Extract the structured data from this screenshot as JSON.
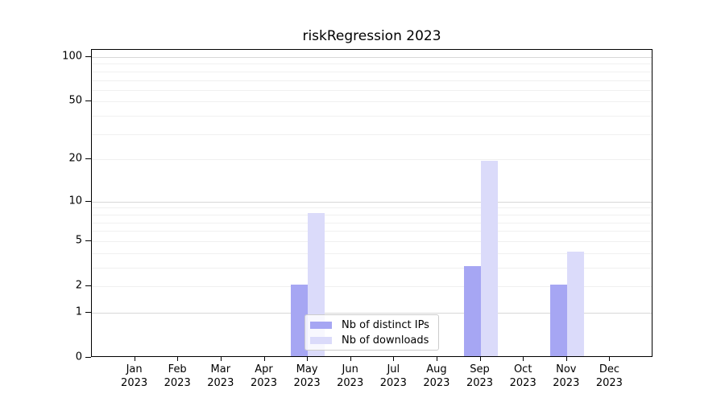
{
  "chart_data": {
    "type": "bar",
    "title": "riskRegression 2023",
    "categories": [
      "Jan 2023",
      "Feb 2023",
      "Mar 2023",
      "Apr 2023",
      "May 2023",
      "Jun 2023",
      "Jul 2023",
      "Aug 2023",
      "Sep 2023",
      "Oct 2023",
      "Nov 2023",
      "Dec 2023"
    ],
    "x_tick_months": [
      "Jan",
      "Feb",
      "Mar",
      "Apr",
      "May",
      "Jun",
      "Jul",
      "Aug",
      "Sep",
      "Oct",
      "Nov",
      "Dec"
    ],
    "x_tick_year": "2023",
    "series": [
      {
        "name": "Nb of distinct IPs",
        "color": "#a6a6f3",
        "values": [
          0,
          0,
          0,
          0,
          2,
          0,
          0,
          0,
          3,
          0,
          2,
          0
        ]
      },
      {
        "name": "Nb of downloads",
        "color": "#dbdbfa",
        "values": [
          0,
          0,
          0,
          0,
          8,
          0,
          0,
          0,
          19,
          0,
          4,
          0
        ]
      }
    ],
    "y_axis": {
      "scale": "log1p",
      "tick_values": [
        100,
        50,
        20,
        10,
        5,
        2,
        1,
        0
      ],
      "ylim": [
        0,
        100
      ],
      "major_gridlines": [
        1,
        10,
        100
      ],
      "minor_gridlines": [
        2,
        3,
        4,
        5,
        6,
        7,
        8,
        9,
        20,
        30,
        40,
        50,
        60,
        70,
        80,
        90
      ]
    },
    "legend": {
      "position": "lower center",
      "items": [
        "Nb of distinct IPs",
        "Nb of downloads"
      ]
    },
    "grid": true
  },
  "style": {
    "background": "#ffffff",
    "spine_color": "#000000",
    "text_color": "#000000",
    "major_grid_color": "#d7d7d7",
    "minor_grid_color": "#f0f0f0",
    "legend_border_color": "#cccccc",
    "bar_ips_color": "#a6a6f3",
    "bar_downloads_color": "#dbdbfa"
  }
}
